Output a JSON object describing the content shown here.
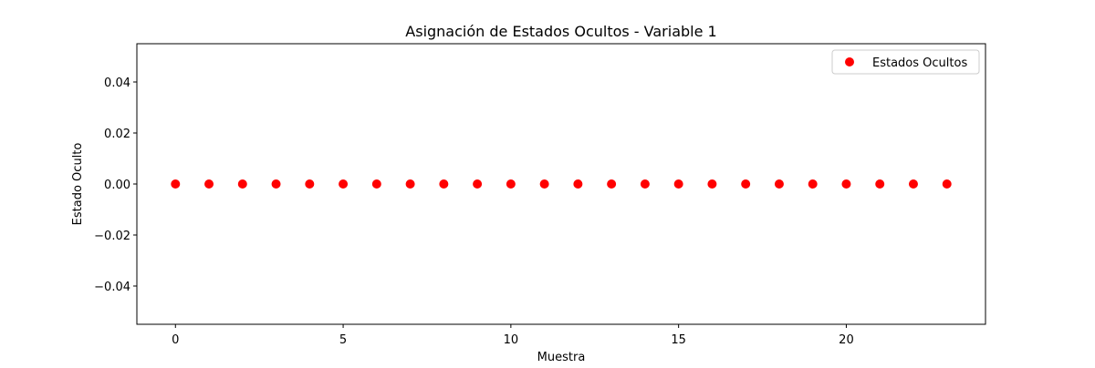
{
  "chart_data": {
    "type": "scatter",
    "title": "Asignación de Estados Ocultos - Variable 1",
    "xlabel": "Muestra",
    "ylabel": "Estado Oculto",
    "xlim": [
      -1.15,
      24.15
    ],
    "ylim": [
      -0.055,
      0.055
    ],
    "xticks": [
      0,
      5,
      10,
      15,
      20
    ],
    "xtick_labels": [
      "0",
      "5",
      "10",
      "15",
      "20"
    ],
    "yticks": [
      -0.04,
      -0.02,
      0.0,
      0.02,
      0.04
    ],
    "ytick_labels": [
      "−0.04",
      "−0.02",
      "0.00",
      "0.02",
      "0.04"
    ],
    "grid": false,
    "legend_position": "top-right",
    "series": [
      {
        "name": "Estados Ocultos",
        "color": "#ff0000",
        "marker": "circle",
        "x": [
          0,
          1,
          2,
          3,
          4,
          5,
          6,
          7,
          8,
          9,
          10,
          11,
          12,
          13,
          14,
          15,
          16,
          17,
          18,
          19,
          20,
          21,
          22,
          23
        ],
        "y": [
          0,
          0,
          0,
          0,
          0,
          0,
          0,
          0,
          0,
          0,
          0,
          0,
          0,
          0,
          0,
          0,
          0,
          0,
          0,
          0,
          0,
          0,
          0,
          0
        ]
      }
    ]
  }
}
